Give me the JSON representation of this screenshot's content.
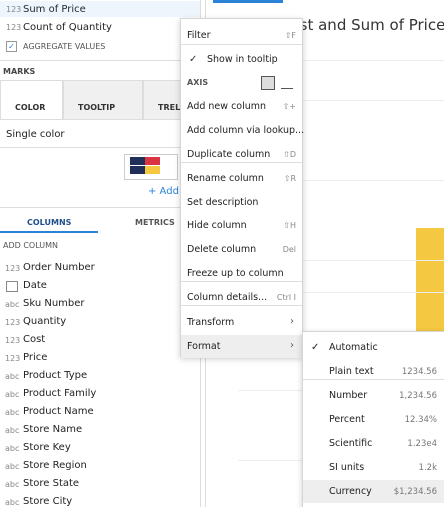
{
  "fields": {
    "items": [
      {
        "type": "123",
        "name": "Sum of Price"
      },
      {
        "type": "123",
        "name": "Count of Quantity"
      }
    ],
    "aggregate": "AGGREGATE VALUES"
  },
  "marks": {
    "title": "MARKS",
    "tabs": [
      "COLOR",
      "TOOLTIP",
      "TRELLIS"
    ],
    "color_mode": "Single color",
    "add": "+ Add"
  },
  "columns_panel": {
    "tabs": [
      "COLUMNS",
      "METRICS"
    ],
    "add_column": "ADD COLUMN",
    "columns": [
      {
        "type": "123",
        "name": "Order Number"
      },
      {
        "name": "Date"
      },
      {
        "type": "abc",
        "name": "Sku Number"
      },
      {
        "type": "123",
        "name": "Quantity"
      },
      {
        "type": "123",
        "name": "Cost"
      },
      {
        "type": "123",
        "name": "Price"
      },
      {
        "type": "abc",
        "name": "Product Type"
      },
      {
        "type": "abc",
        "name": "Product Family"
      },
      {
        "type": "abc",
        "name": "Product Name"
      },
      {
        "type": "abc",
        "name": "Store Name"
      },
      {
        "type": "abc",
        "name": "Store Key"
      },
      {
        "type": "abc",
        "name": "Store Region"
      },
      {
        "type": "abc",
        "name": "Store State"
      },
      {
        "type": "abc",
        "name": "Store City"
      }
    ]
  },
  "chart": {
    "title": "Cost and Sum of Price"
  },
  "context_menu": {
    "items": [
      {
        "label": "Filter",
        "shortcut": "⇧F"
      },
      {
        "label": "Show in tooltip",
        "checked": true
      },
      {
        "label": "AXIS",
        "header": true
      },
      {
        "label": "Add new column",
        "shortcut": "⇧+"
      },
      {
        "label": "Add column via lookup..."
      },
      {
        "label": "Duplicate column",
        "shortcut": "⇧D"
      },
      {
        "label": "Rename column",
        "shortcut": "⇧R"
      },
      {
        "label": "Set description"
      },
      {
        "label": "Hide column",
        "shortcut": "⇧H"
      },
      {
        "label": "Delete column",
        "shortcut": "Del"
      },
      {
        "label": "Freeze up to column"
      },
      {
        "label": "Column details...",
        "shortcut": "Ctrl I"
      },
      {
        "label": "Transform",
        "submenu": true
      },
      {
        "label": "Format",
        "submenu": true,
        "active": true
      }
    ]
  },
  "format_menu": {
    "items": [
      {
        "label": "Automatic",
        "checked": true
      },
      {
        "label": "Plain text",
        "example": "1234.56"
      },
      {
        "label": "Number",
        "example": "1,234.56"
      },
      {
        "label": "Percent",
        "example": "12.34%"
      },
      {
        "label": "Scientific",
        "example": "1.23e4"
      },
      {
        "label": "SI units",
        "example": "1.2k"
      },
      {
        "label": "Currency",
        "example": "$1,234.56",
        "active": true
      }
    ]
  }
}
